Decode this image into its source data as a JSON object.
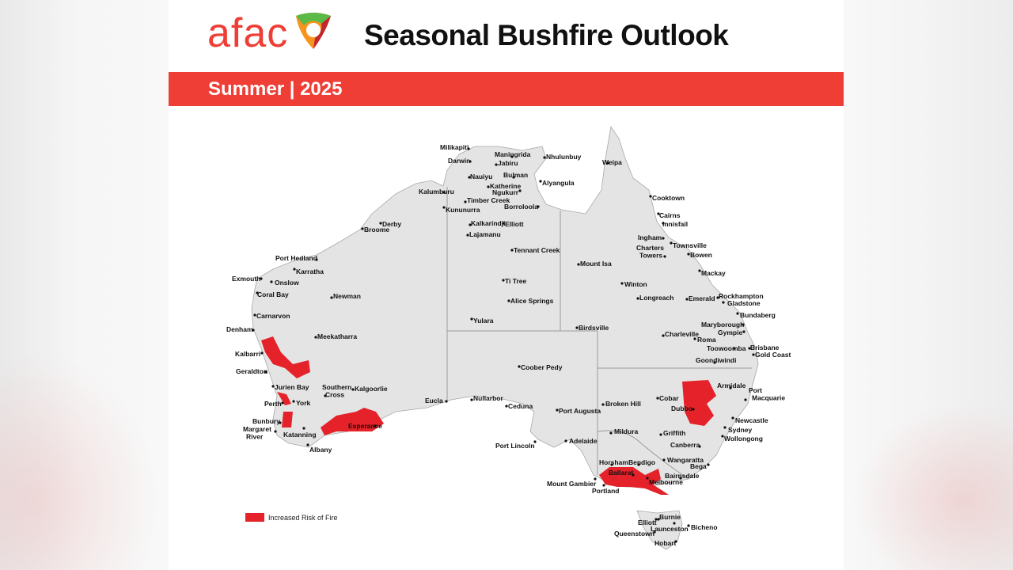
{
  "header": {
    "logo_text": "afac",
    "title": "Seasonal Bushfire Outlook",
    "season": "Summer | 2025"
  },
  "legend": {
    "label": "Increased Risk of Fire",
    "color": "#e52129"
  },
  "colors": {
    "accent": "#ee3e36",
    "land": "#e4e4e4",
    "border": "#9a9a9a",
    "risk": "#e52129"
  },
  "map": {
    "places": [
      "Milikapiti",
      "Darwin",
      "Maningrida",
      "Jabiru",
      "Nhulunbuy",
      "Weipa",
      "Nauiyu",
      "Bulman",
      "Katherine",
      "Ngukurr",
      "Alyangula",
      "Kalumburu",
      "Timber Creek",
      "Kununurra",
      "Borroloola",
      "Cooktown",
      "Cairns",
      "Innisfail",
      "Kalkarindji",
      "Elliott",
      "Derby",
      "Broome",
      "Lajamanu",
      "Ingham",
      "Townsville",
      "Charters Towers",
      "Tennant Creek",
      "Bowen",
      "Port Hedland",
      "Karratha",
      "Mount Isa",
      "Mackay",
      "Exmouth",
      "Onslow",
      "Ti Tree",
      "Winton",
      "Coral Bay",
      "Newman",
      "Longreach",
      "Emerald",
      "Rockhampton",
      "Gladstone",
      "Alice Springs",
      "Carnarvon",
      "Bundaberg",
      "Yulara",
      "Maryborough",
      "Gympie",
      "Birdsville",
      "Denham",
      "Meekatharra",
      "Charleville",
      "Roma",
      "Toowoomba",
      "Brisbane",
      "Gold Coast",
      "Kalbarri",
      "Goondiwindi",
      "Coober Pedy",
      "Geraldton",
      "Armidale",
      "Jurien Bay",
      "Southern Cross",
      "Kalgoorlie",
      "Port Macquarie",
      "Cobar",
      "Broken Hill",
      "Eucla",
      "Nullarbor",
      "Perth",
      "York",
      "Ceduna",
      "Dubbo",
      "Port Augusta",
      "Bunbury",
      "Newcastle",
      "Esperance",
      "Margaret River",
      "Katanning",
      "Sydney",
      "Mildura",
      "Griffith",
      "Wollongong",
      "Adelaide",
      "Port Lincoln",
      "Canberra",
      "Albany",
      "Horsham",
      "Bendigo",
      "Wangaratta",
      "Bega",
      "Ballarat",
      "Bairnsdale",
      "Melbourne",
      "Mount Gambier",
      "Portland",
      "Burnie",
      "Elliott",
      "Launceston",
      "Bicheno",
      "Queenstown",
      "Hobart"
    ]
  }
}
